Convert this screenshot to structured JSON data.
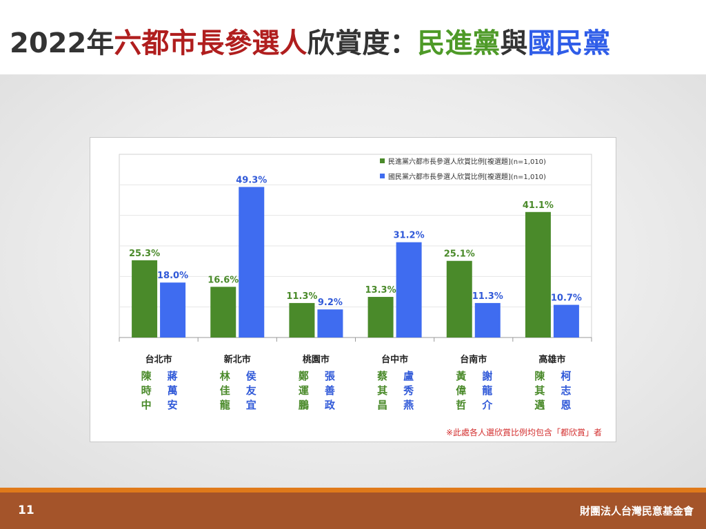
{
  "title": {
    "parts": [
      {
        "text": "2022年",
        "color": "#333333"
      },
      {
        "text": "六都市長參選人",
        "color": "#b01e1e"
      },
      {
        "text": "欣賞度：",
        "color": "#333333"
      },
      {
        "text": "民進黨",
        "color": "#4e9a28"
      },
      {
        "text": "與",
        "color": "#333333"
      },
      {
        "text": "國民黨",
        "color": "#2f5de8"
      }
    ]
  },
  "colors": {
    "dpp": "#4a8a2a",
    "kmt": "#3f6cf0",
    "dpp_text": "#4a8a2a",
    "kmt_text": "#3059d8"
  },
  "chart_data": {
    "type": "bar",
    "categories": [
      "台北市",
      "新北市",
      "桃園市",
      "台中市",
      "台南市",
      "高雄市"
    ],
    "series": [
      {
        "name": "民進黨六都市長參選人欣賞比例[複選題](n=1,010)",
        "values": [
          25.3,
          16.6,
          11.3,
          13.3,
          25.1,
          41.1
        ],
        "labels": [
          "25.3%",
          "16.6%",
          "11.3%",
          "13.3%",
          "25.1%",
          "41.1%"
        ]
      },
      {
        "name": "國民黨六都市長參選人欣賞比例[複選題](n=1,010)",
        "values": [
          18.0,
          49.3,
          9.2,
          31.2,
          11.3,
          10.7
        ],
        "labels": [
          "18.0%",
          "49.3%",
          "9.2%",
          "31.2%",
          "11.3%",
          "10.7%"
        ]
      }
    ],
    "ylim": [
      0,
      60
    ],
    "grid": true,
    "legend_position": "top-right"
  },
  "candidates": [
    {
      "dpp": [
        "陳",
        "時",
        "中"
      ],
      "kmt": [
        "蔣",
        "萬",
        "安"
      ]
    },
    {
      "dpp": [
        "林",
        "佳",
        "龍"
      ],
      "kmt": [
        "侯",
        "友",
        "宜"
      ]
    },
    {
      "dpp": [
        "鄭",
        "運",
        "鵬"
      ],
      "kmt": [
        "張",
        "善",
        "政"
      ]
    },
    {
      "dpp": [
        "蔡",
        "其",
        "昌"
      ],
      "kmt": [
        "盧",
        "秀",
        "燕"
      ]
    },
    {
      "dpp": [
        "黃",
        "偉",
        "哲"
      ],
      "kmt": [
        "謝",
        "龍",
        "介"
      ]
    },
    {
      "dpp": [
        "陳",
        "其",
        "邁"
      ],
      "kmt": [
        "柯",
        "志",
        "恩"
      ]
    }
  ],
  "footnote": "※此處各人選欣賞比例均包含「都欣賞」者",
  "footer": {
    "page_number": "11",
    "organization": "財團法人台灣民意基金會"
  }
}
